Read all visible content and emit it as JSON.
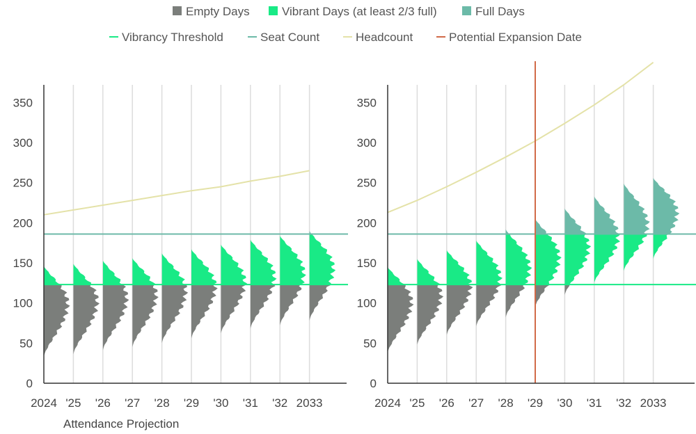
{
  "legend": {
    "row1": [
      {
        "label": "Empty Days",
        "color": "#7b7e7b"
      },
      {
        "label": "Vibrant Days (at least 2/3 full)",
        "color": "#19ea86"
      },
      {
        "label": "Full Days",
        "color": "#6cbaa8"
      }
    ],
    "row2": [
      {
        "label": "Vibrancy Threshold",
        "color": "#19ea86"
      },
      {
        "label": "Seat Count",
        "color": "#6cbaa8"
      },
      {
        "label": "Headcount",
        "color": "#e4e2a8"
      },
      {
        "label": "Potential Expansion Date",
        "color": "#d16a48"
      }
    ]
  },
  "caption": "Attendance Projection",
  "chart_data": [
    {
      "type": "area",
      "x_tick_labels": [
        "2024",
        "'25",
        "'26",
        "'27",
        "'28",
        "'29",
        "'30",
        "'31",
        "'32",
        "2033"
      ],
      "y_ticks": [
        0,
        50,
        100,
        150,
        200,
        250,
        300,
        350
      ],
      "ylim": [
        0,
        372
      ],
      "vibrancy_threshold": 123,
      "seat_count": 186,
      "headcount": [
        210,
        216,
        222,
        228,
        234,
        240,
        245,
        252,
        258,
        265
      ],
      "attendance_distribution_peak": [
        100,
        103,
        107,
        111,
        116,
        121,
        127,
        133,
        138,
        144
      ],
      "attendance_distribution_range": [
        [
          33,
          146
        ],
        [
          36,
          149
        ],
        [
          41,
          153
        ],
        [
          45,
          156
        ],
        [
          50,
          162
        ],
        [
          56,
          167
        ],
        [
          62,
          173
        ],
        [
          68,
          179
        ],
        [
          72,
          184
        ],
        [
          78,
          190
        ]
      ]
    },
    {
      "type": "area",
      "x_tick_labels": [
        "2024",
        "'25",
        "'26",
        "'27",
        "'28",
        "'29",
        "'30",
        "'31",
        "'32",
        "2033"
      ],
      "y_ticks": [
        0,
        50,
        100,
        150,
        200,
        250,
        300,
        350
      ],
      "ylim": [
        0,
        372
      ],
      "vibrancy_threshold": 123,
      "seat_count": 186,
      "headcount": [
        213,
        228,
        245,
        263,
        282,
        302,
        324,
        347,
        372,
        400
      ],
      "attendance_distribution_peak": [
        102,
        110,
        122,
        132,
        144,
        157,
        170,
        183,
        198,
        213
      ],
      "attendance_distribution_range": [
        [
          38,
          145
        ],
        [
          48,
          155
        ],
        [
          60,
          166
        ],
        [
          71,
          178
        ],
        [
          82,
          192
        ],
        [
          95,
          205
        ],
        [
          110,
          218
        ],
        [
          125,
          233
        ],
        [
          140,
          249
        ],
        [
          155,
          256
        ]
      ],
      "expansion_date": "'29"
    }
  ]
}
